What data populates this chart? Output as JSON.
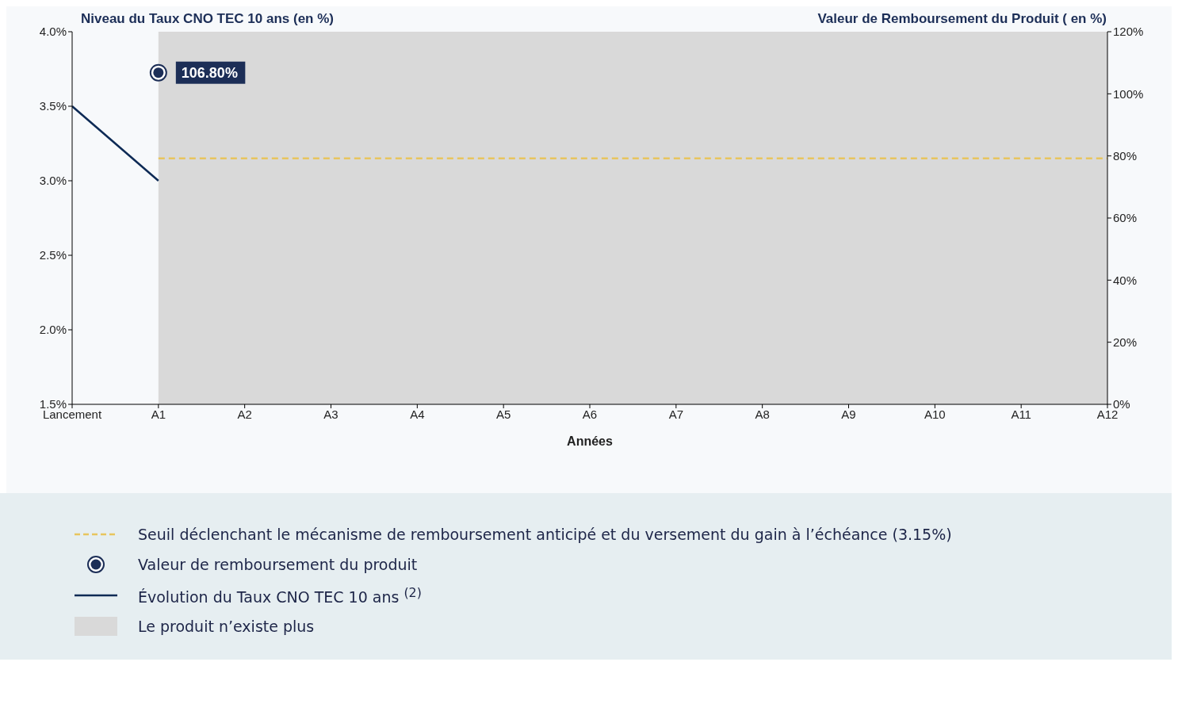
{
  "chart_data": {
    "type": "line",
    "ylabel": "Niveau du Taux CNO TEC 10 ans (en %)",
    "y2label": "Valeur de Remboursement du Produit ( en %)",
    "xlabel": "Années",
    "categories": [
      "Lancement",
      "A1",
      "A2",
      "A3",
      "A4",
      "A5",
      "A6",
      "A7",
      "A8",
      "A9",
      "A10",
      "A11",
      "A12"
    ],
    "series": [
      {
        "name": "Évolution du Taux CNO TEC 10 ans $^{(2)}$",
        "color": "#0d2a55",
        "marker": "none",
        "line_style": "solid",
        "values": [
          3.5,
          3.0,
          null,
          null,
          null,
          null,
          null,
          null,
          null,
          null,
          null,
          null,
          null
        ]
      },
      {
        "name": "Valeur de remboursement du produit",
        "type": "scatter",
        "axis": "y2",
        "color": "#1c2e57",
        "marker": "circle",
        "values": [
          null,
          106.8,
          null,
          null,
          null,
          null,
          null,
          null,
          null,
          null,
          null,
          null,
          null
        ],
        "value_labels": [
          null,
          "106.80%",
          null,
          null,
          null,
          null,
          null,
          null,
          null,
          null,
          null,
          null,
          null
        ]
      }
    ],
    "ylim": [
      1.5,
      4.0
    ],
    "yticks": [
      {
        "value": 1.5,
        "label": "1.5%"
      },
      {
        "value": 2.0,
        "label": "2.0%"
      },
      {
        "value": 2.5,
        "label": "2.5%"
      },
      {
        "value": 3.0,
        "label": "3.0%"
      },
      {
        "value": 3.5,
        "label": "3.5%"
      },
      {
        "value": 4.0,
        "label": "4.0%"
      }
    ],
    "y2lim": [
      0,
      120
    ],
    "y2ticks": [
      {
        "value": 0,
        "label": "0%"
      },
      {
        "value": 20,
        "label": "20%"
      },
      {
        "value": 40,
        "label": "40%"
      },
      {
        "value": 60,
        "label": "60%"
      },
      {
        "value": 80,
        "label": "80%"
      },
      {
        "value": 100,
        "label": "100%"
      },
      {
        "value": 120,
        "label": "120%"
      }
    ],
    "ref_lines": [
      {
        "axis": "y",
        "value": 3.15,
        "label": "Seuil déclenchant le mécanisme de remboursement anticipé et du versement du gain à l’échéance (3.15%)",
        "color": "#e8c55e",
        "line_style": "dashed"
      }
    ],
    "bands": [
      {
        "axis": "x",
        "from": "A1",
        "to": "A12",
        "label": "Le produit n’existe plus",
        "color": "#d9d9d9"
      }
    ],
    "legend": "bottom"
  }
}
